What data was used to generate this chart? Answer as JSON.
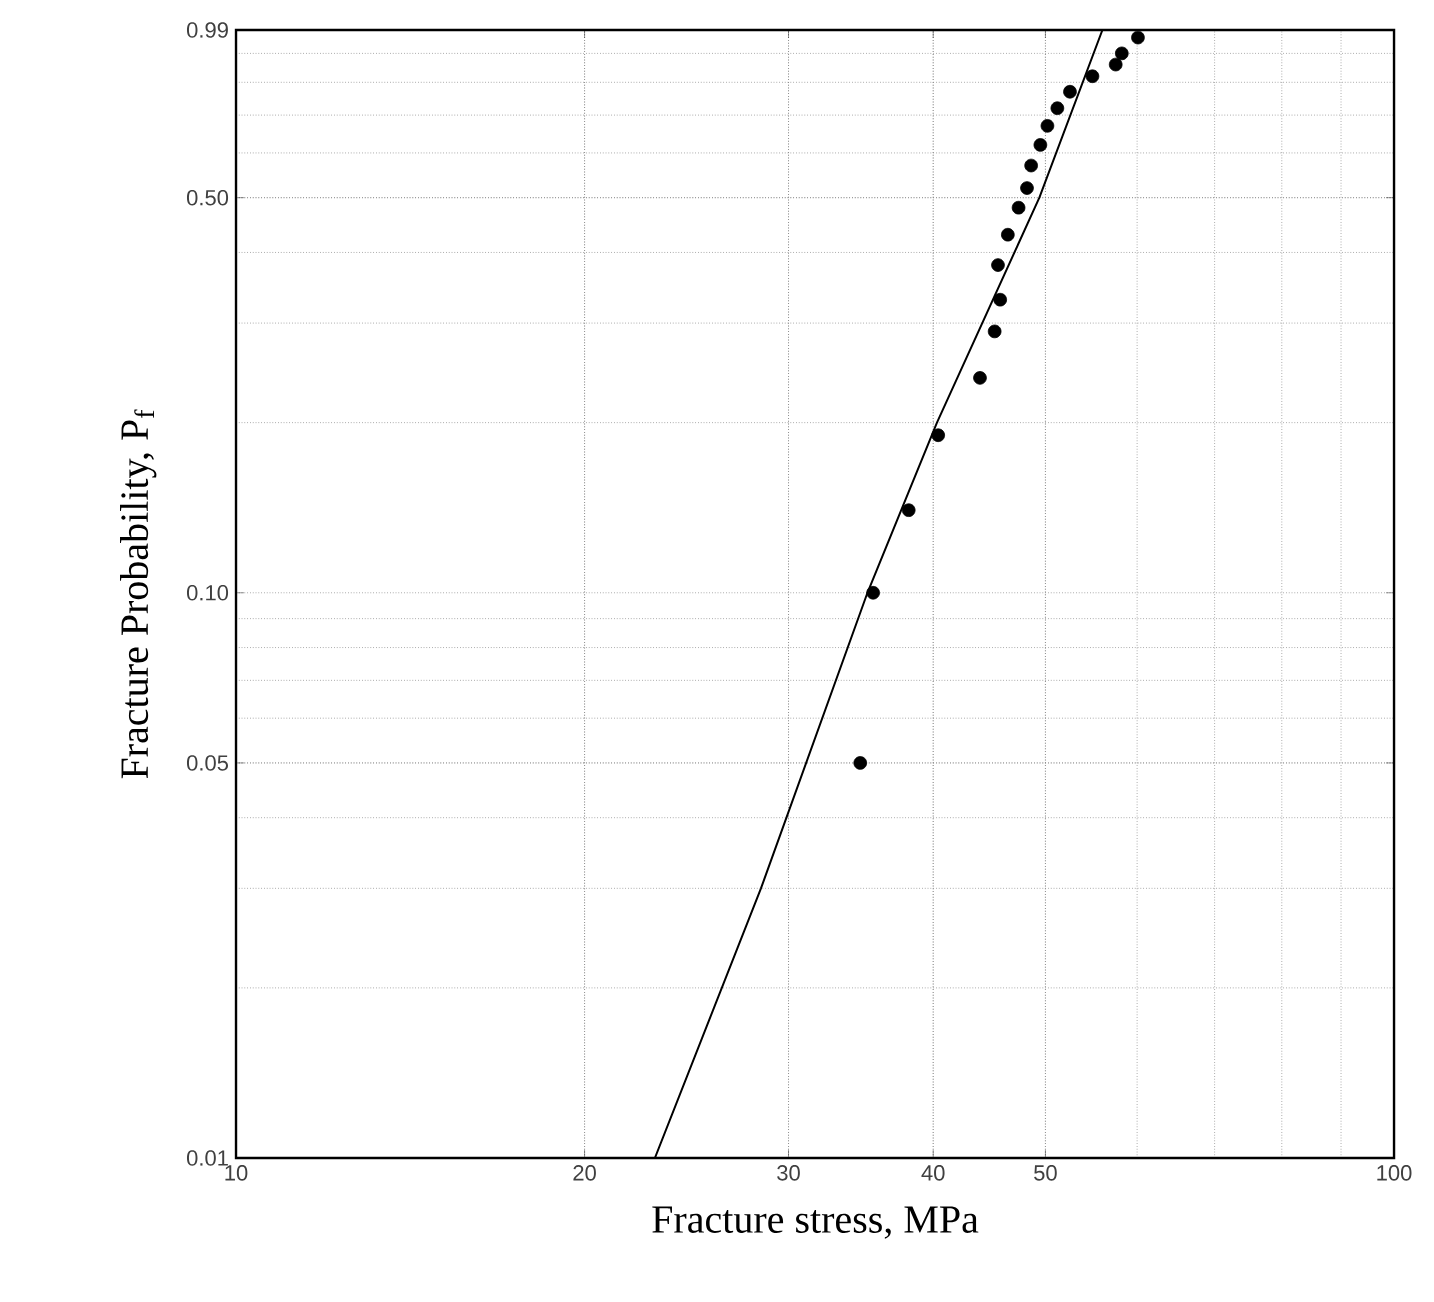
{
  "chart_data": {
    "type": "scatter",
    "xlabel": "Fracture stress, MPa",
    "ylabel": "Fracture Probability, P$_{f}$",
    "log": "xy",
    "grid": true,
    "marker": "circle",
    "xlim": [
      10,
      100
    ],
    "ylim": [
      0.01,
      0.99
    ],
    "xticks": [
      10,
      20,
      30,
      40,
      50,
      100
    ],
    "yticks": [
      {
        "value": 0.01,
        "label": "0.01"
      },
      {
        "value": 0.05,
        "label": "0.05"
      },
      {
        "value": 0.1,
        "label": "0.10"
      },
      {
        "value": 0.5,
        "label": "0.50"
      },
      {
        "value": 0.99,
        "label": "0.99"
      }
    ],
    "series": [
      {
        "color": "#000000",
        "x": [
          60.1,
          58.2,
          57.5,
          54.9,
          52.5,
          51.2,
          50.2,
          49.5,
          48.6,
          48.2,
          47.4,
          46.4,
          45.5,
          45.7,
          45.2,
          43.9,
          40.4,
          38.1,
          35.5,
          34.6
        ],
        "values": [
          0.96,
          0.9,
          0.86,
          0.82,
          0.77,
          0.72,
          0.67,
          0.62,
          0.57,
          0.52,
          0.48,
          0.43,
          0.38,
          0.33,
          0.29,
          0.24,
          0.19,
          0.14,
          0.1,
          0.05
        ]
      },
      {
        "type": "line",
        "marker": "none",
        "line_style": "solid",
        "color": "#000000",
        "x": [
          23.0,
          28.4,
          35.1,
          40.3,
          49.4,
          56.0
        ],
        "values": [
          0.01,
          0.03,
          0.1,
          0.2,
          0.5,
          0.99
        ]
      }
    ]
  }
}
